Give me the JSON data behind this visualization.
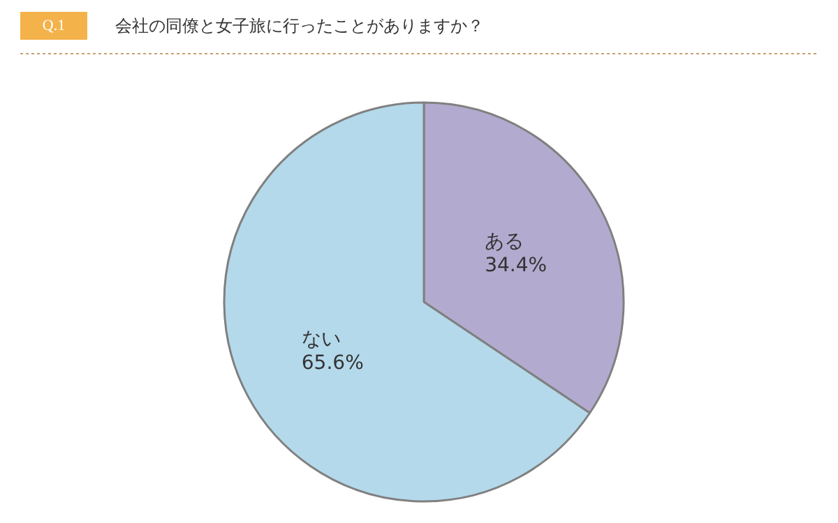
{
  "chart_data": {
    "type": "pie",
    "title": "会社の同僚と女子旅に行ったことがありますか？",
    "annotations": [
      "Q.1"
    ],
    "categories": [
      "ある",
      "ない"
    ],
    "values": [
      34.4,
      65.6
    ],
    "value_labels": [
      "34.4%",
      "65.6%"
    ],
    "colors": [
      "#b3abcf",
      "#b4d9eb"
    ]
  }
}
